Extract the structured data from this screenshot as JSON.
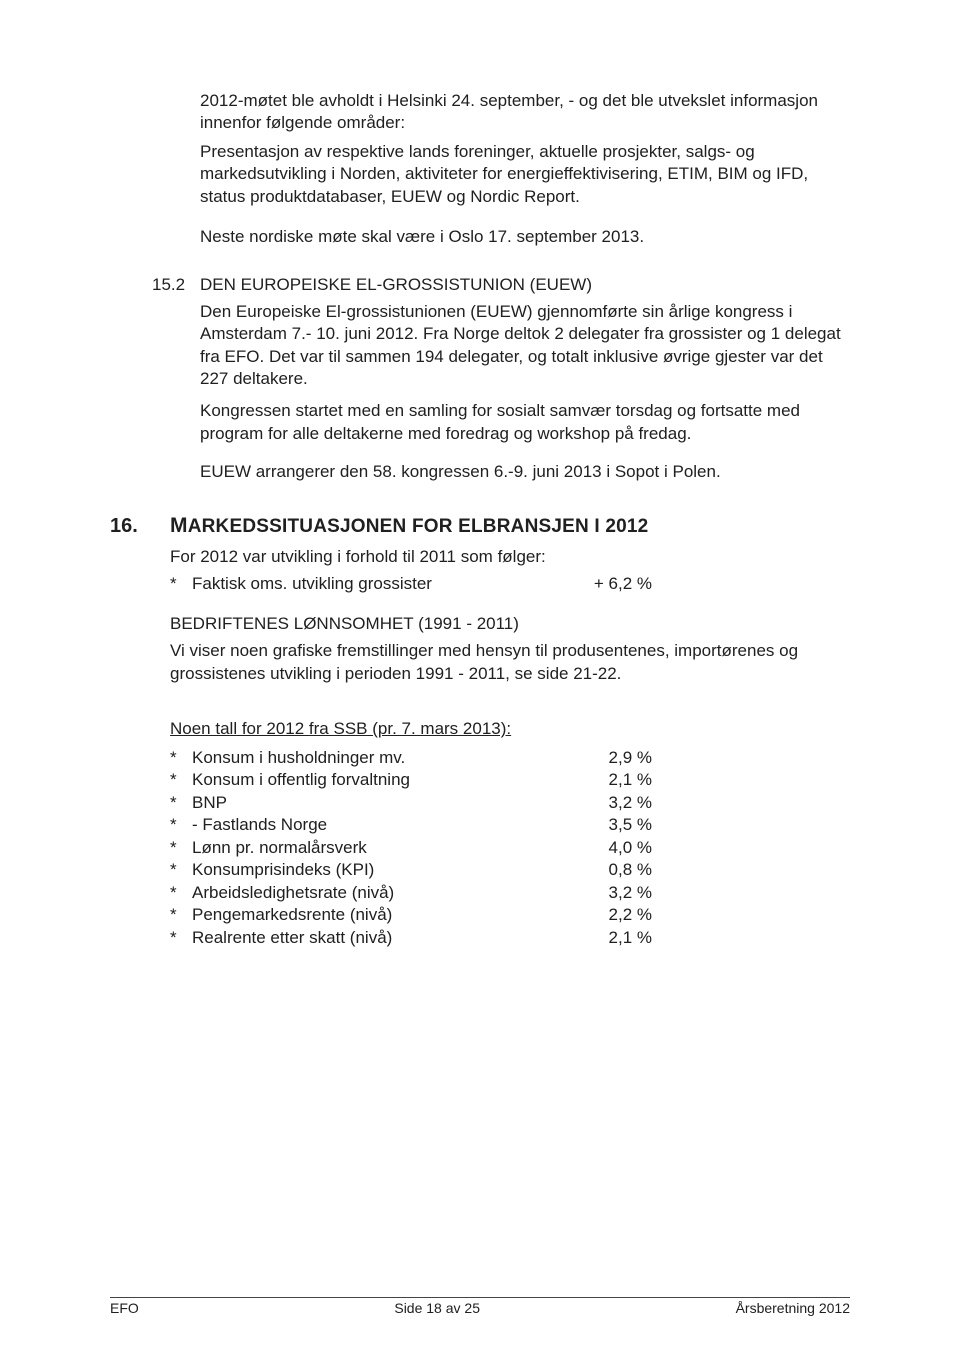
{
  "para1": "2012-møtet ble avholdt i Helsinki 24. september, - og det ble utvekslet informasjon innenfor følgende områder:",
  "para2": "Presentasjon av respektive lands foreninger, aktuelle prosjekter, salgs- og markedsutvikling i Norden, aktiviteter for energieffektivisering, ETIM, BIM og IFD, status produktdatabaser, EUEW og Nordic Report.",
  "para3": "Neste nordiske møte skal være i Oslo 17. september 2013.",
  "sec152_num": "15.2",
  "sec152_title": "DEN EUROPEISKE EL-GROSSISTUNION (EUEW)",
  "sec152_p1": "Den Europeiske El-grossistunionen (EUEW) gjennomførte sin årlige kongress i Amsterdam 7.- 10. juni 2012. Fra Norge deltok 2 delegater fra grossister og 1 delegat fra EFO. Det var til sammen 194 delegater, og totalt inklusive øvrige gjester var det 227 deltakere.",
  "sec152_p2": "Kongressen startet med en samling for sosialt samvær torsdag og fortsatte med program for alle deltakerne med foredrag og workshop på fredag.",
  "sec152_p3": "EUEW arrangerer den 58. kongressen 6.-9. juni 2013 i Sopot i Polen.",
  "sec16_num": "16.",
  "sec16_title_word1": "M",
  "sec16_title_rest": "ARKEDSSITUASJONEN FOR ELBRANSJEN I 2012",
  "sec16_p1": "For 2012 var utvikling i forhold til 2011 som følger:",
  "stat1_label": "Faktisk oms. utvikling grossister",
  "stat1_val": "+ 6,2 %",
  "subhead1": "BEDRIFTENES LØNNSOMHET (1991 - 2011)",
  "sub_p1": "Vi viser noen grafiske fremstillinger med hensyn til produsentenes, importørenes og grossistenes utvikling i perioden 1991 - 2011, se side 21-22.",
  "ssb_heading": "Noen tall for 2012 fra SSB (pr. 7. mars 2013):",
  "ssb": [
    {
      "label": "Konsum i husholdninger mv.",
      "val": "2,9 %"
    },
    {
      "label": "Konsum i offentlig forvaltning",
      "val": "2,1 %"
    },
    {
      "label": "BNP",
      "val": "3,2 %"
    },
    {
      "label": "- Fastlands Norge",
      "val": "3,5 %"
    },
    {
      "label": "Lønn pr. normalårsverk",
      "val": "4,0 %"
    },
    {
      "label": "Konsumprisindeks (KPI)",
      "val": "0,8 %"
    },
    {
      "label": "Arbeidsledighetsrate (nivå)",
      "val": "3,2 %"
    },
    {
      "label": "Pengemarkedsrente (nivå)",
      "val": "2,2 %"
    },
    {
      "label": "Realrente etter skatt (nivå)",
      "val": "2,1 %"
    }
  ],
  "footer_left": "EFO",
  "footer_center": "Side 18 av 25",
  "footer_right": "Årsberetning 2012"
}
